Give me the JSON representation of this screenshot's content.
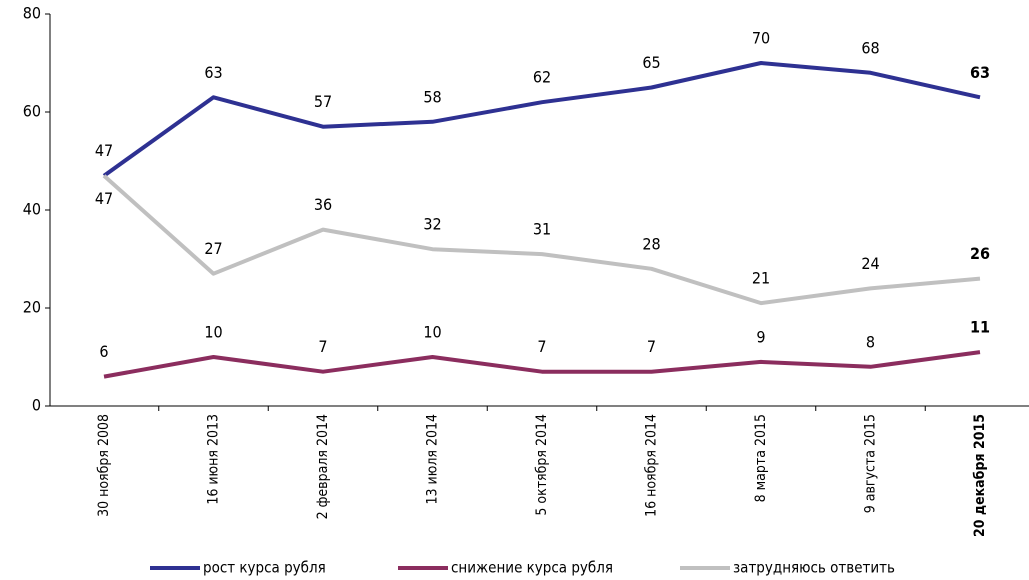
{
  "chart_data": {
    "type": "line",
    "categories": [
      "30 ноября 2008",
      "16 июня 2013",
      "2 февраля 2014",
      "13 июля 2014",
      "5 октября 2014",
      "16 ноября 2014",
      "8 марта 2015",
      "9 августа 2015",
      "20 декабря 2015"
    ],
    "series": [
      {
        "name": "рост курса рубля",
        "color": "#2e3192",
        "values": [
          47,
          63,
          57,
          58,
          62,
          65,
          70,
          68,
          63
        ]
      },
      {
        "name": "снижение курса рубля",
        "color": "#8b2d5e",
        "values": [
          6,
          10,
          7,
          10,
          7,
          7,
          9,
          8,
          11
        ]
      },
      {
        "name": "затрудняюсь ответить",
        "color": "#c0c0c0",
        "values": [
          47,
          27,
          36,
          32,
          31,
          28,
          21,
          24,
          26
        ]
      }
    ],
    "ylim": [
      0,
      80
    ],
    "yticks": [
      0,
      20,
      40,
      60,
      80
    ],
    "grid": false,
    "legend": "bottom"
  }
}
